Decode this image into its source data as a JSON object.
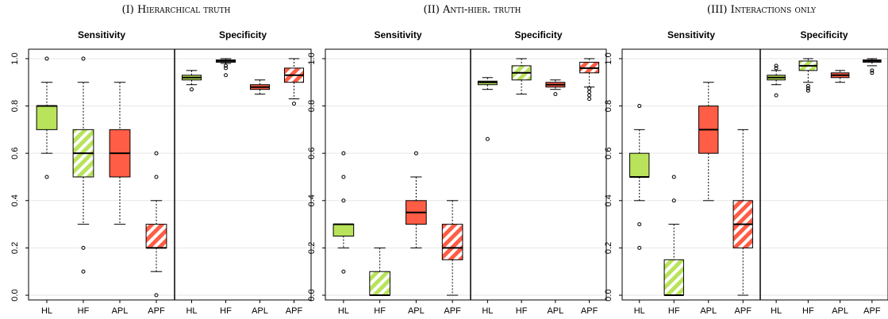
{
  "colors": {
    "green": "#b8e35a",
    "red": "#ff5d45",
    "stroke": "#000000",
    "grid": "#e6e6e6"
  },
  "chart_data": [
    {
      "type": "boxplot",
      "panel_title": "(I) Hierarchical truth",
      "subtitles": [
        "Sensitivity",
        "Specificity"
      ],
      "categories": [
        "HL",
        "HF",
        "APL",
        "APF"
      ],
      "yticks": [
        "0.0",
        "0.2",
        "0.4",
        "0.6",
        "0.8",
        "1.0"
      ],
      "ylim": [
        -0.02,
        1.04
      ],
      "sensitivity": [
        {
          "whisker_low": 0.6,
          "q1": 0.7,
          "median": 0.8,
          "q3": 0.8,
          "whisker_high": 0.9,
          "outliers": [
            0.5,
            1.0
          ]
        },
        {
          "whisker_low": 0.3,
          "q1": 0.5,
          "median": 0.6,
          "q3": 0.7,
          "whisker_high": 0.9,
          "outliers": [
            0.1,
            0.2,
            1.0
          ]
        },
        {
          "whisker_low": 0.3,
          "q1": 0.5,
          "median": 0.6,
          "q3": 0.7,
          "whisker_high": 0.9,
          "outliers": []
        },
        {
          "whisker_low": 0.1,
          "q1": 0.2,
          "median": 0.2,
          "q3": 0.3,
          "whisker_high": 0.4,
          "outliers": [
            0.0,
            0.5,
            0.6
          ]
        }
      ],
      "specificity": [
        {
          "whisker_low": 0.89,
          "q1": 0.91,
          "median": 0.92,
          "q3": 0.93,
          "whisker_high": 0.95,
          "outliers": [
            0.87
          ]
        },
        {
          "whisker_low": 0.98,
          "q1": 0.985,
          "median": 0.99,
          "q3": 0.995,
          "whisker_high": 1.0,
          "outliers": [
            0.93,
            0.96,
            0.97
          ]
        },
        {
          "whisker_low": 0.85,
          "q1": 0.87,
          "median": 0.88,
          "q3": 0.89,
          "whisker_high": 0.91,
          "outliers": []
        },
        {
          "whisker_low": 0.83,
          "q1": 0.9,
          "median": 0.93,
          "q3": 0.96,
          "whisker_high": 1.0,
          "outliers": [
            0.81
          ]
        }
      ]
    },
    {
      "type": "boxplot",
      "panel_title": "(II) Anti-hier. truth",
      "subtitles": [
        "Sensitivity",
        "Specificity"
      ],
      "categories": [
        "HL",
        "HF",
        "APL",
        "APF"
      ],
      "yticks": [
        "0.0",
        "0.2",
        "0.4",
        "0.6",
        "0.8",
        "1.0"
      ],
      "ylim": [
        -0.02,
        1.04
      ],
      "sensitivity": [
        {
          "whisker_low": 0.2,
          "q1": 0.25,
          "median": 0.3,
          "q3": 0.3,
          "whisker_high": 0.3,
          "outliers": [
            0.1,
            0.4,
            0.5,
            0.6
          ]
        },
        {
          "whisker_low": 0.0,
          "q1": 0.0,
          "median": 0.0,
          "q3": 0.1,
          "whisker_high": 0.2,
          "outliers": []
        },
        {
          "whisker_low": 0.2,
          "q1": 0.3,
          "median": 0.35,
          "q3": 0.4,
          "whisker_high": 0.5,
          "outliers": [
            0.6
          ]
        },
        {
          "whisker_low": 0.0,
          "q1": 0.15,
          "median": 0.2,
          "q3": 0.3,
          "whisker_high": 0.4,
          "outliers": []
        }
      ],
      "specificity": [
        {
          "whisker_low": 0.87,
          "q1": 0.89,
          "median": 0.9,
          "q3": 0.905,
          "whisker_high": 0.92,
          "outliers": [
            0.66
          ]
        },
        {
          "whisker_low": 0.85,
          "q1": 0.91,
          "median": 0.94,
          "q3": 0.97,
          "whisker_high": 1.0,
          "outliers": []
        },
        {
          "whisker_low": 0.87,
          "q1": 0.88,
          "median": 0.89,
          "q3": 0.9,
          "whisker_high": 0.91,
          "outliers": [
            0.85
          ]
        },
        {
          "whisker_low": 0.88,
          "q1": 0.94,
          "median": 0.96,
          "q3": 0.985,
          "whisker_high": 1.0,
          "outliers": [
            0.83,
            0.845,
            0.86,
            0.875
          ]
        }
      ]
    },
    {
      "type": "boxplot",
      "panel_title": "(III) Interactions only",
      "subtitles": [
        "Sensitivity",
        "Specificity"
      ],
      "categories": [
        "HL",
        "HF",
        "APL",
        "APF"
      ],
      "yticks": [
        "0.0",
        "0.2",
        "0.4",
        "0.6",
        "0.8",
        "1.0"
      ],
      "ylim": [
        -0.02,
        1.04
      ],
      "sensitivity": [
        {
          "whisker_low": 0.4,
          "q1": 0.5,
          "median": 0.5,
          "q3": 0.6,
          "whisker_high": 0.7,
          "outliers": [
            0.2,
            0.3,
            0.8
          ]
        },
        {
          "whisker_low": 0.0,
          "q1": 0.0,
          "median": 0.0,
          "q3": 0.15,
          "whisker_high": 0.3,
          "outliers": [
            0.4,
            0.5
          ]
        },
        {
          "whisker_low": 0.4,
          "q1": 0.6,
          "median": 0.7,
          "q3": 0.8,
          "whisker_high": 0.9,
          "outliers": []
        },
        {
          "whisker_low": 0.0,
          "q1": 0.2,
          "median": 0.3,
          "q3": 0.4,
          "whisker_high": 0.7,
          "outliers": []
        }
      ],
      "specificity": [
        {
          "whisker_low": 0.89,
          "q1": 0.91,
          "median": 0.92,
          "q3": 0.93,
          "whisker_high": 0.95,
          "outliers": [
            0.845,
            0.96,
            0.97
          ]
        },
        {
          "whisker_low": 0.9,
          "q1": 0.95,
          "median": 0.97,
          "q3": 0.99,
          "whisker_high": 1.0,
          "outliers": [
            0.865,
            0.875,
            0.885
          ]
        },
        {
          "whisker_low": 0.9,
          "q1": 0.92,
          "median": 0.93,
          "q3": 0.94,
          "whisker_high": 0.95,
          "outliers": []
        },
        {
          "whisker_low": 0.97,
          "q1": 0.985,
          "median": 0.99,
          "q3": 0.995,
          "whisker_high": 1.0,
          "outliers": [
            0.94,
            0.95
          ]
        }
      ]
    }
  ]
}
